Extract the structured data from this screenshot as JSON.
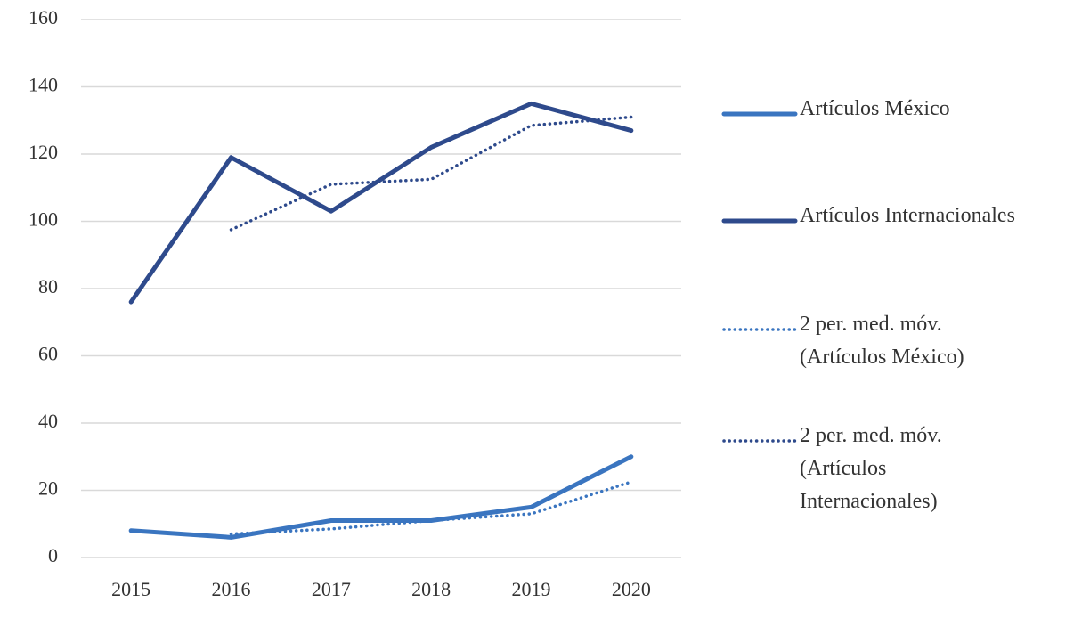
{
  "chart_data": {
    "type": "line",
    "categories": [
      "2015",
      "2016",
      "2017",
      "2018",
      "2019",
      "2020"
    ],
    "series": [
      {
        "name": "Artículos México",
        "color": "#3a75c0",
        "style": "solid",
        "values": [
          8,
          6,
          11,
          11,
          15,
          30
        ]
      },
      {
        "name": "Artículos Internacionales",
        "color": "#2e4a8c",
        "style": "solid",
        "values": [
          76,
          119,
          103,
          122,
          135,
          127
        ]
      },
      {
        "name": "2 per. med. móv. (Artículos México)",
        "color": "#3a75c0",
        "style": "dotted",
        "values": [
          null,
          7,
          8.5,
          11,
          13,
          22.5
        ]
      },
      {
        "name": "2 per. med. móv. (Artículos Internacionales)",
        "color": "#2e4a8c",
        "style": "dotted",
        "values": [
          null,
          97.5,
          111,
          112.5,
          128.5,
          131
        ]
      }
    ],
    "ylim": [
      0,
      160
    ],
    "yticks": [
      0,
      20,
      40,
      60,
      80,
      100,
      120,
      140,
      160
    ],
    "grid": true,
    "legend": "right"
  }
}
